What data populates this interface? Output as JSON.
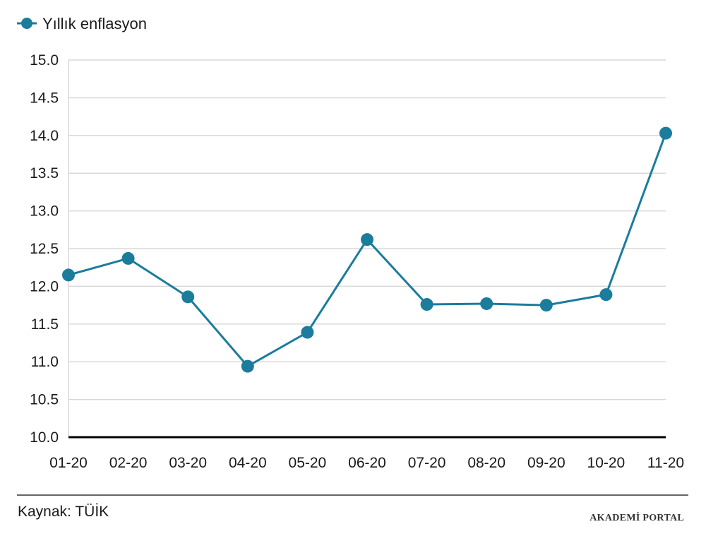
{
  "colors": {
    "series": "#1b7c9c",
    "grid": "#d9d9d9",
    "axis": "#000000",
    "text": "#1a1a1a"
  },
  "chart_data": {
    "type": "line",
    "title": "",
    "xlabel": "",
    "ylabel": "",
    "categories": [
      "01-20",
      "02-20",
      "03-20",
      "04-20",
      "05-20",
      "06-20",
      "07-20",
      "08-20",
      "09-20",
      "10-20",
      "11-20"
    ],
    "series": [
      {
        "name": "Yıllık enflasyon",
        "values": [
          12.15,
          12.37,
          11.86,
          10.94,
          11.39,
          12.62,
          11.76,
          11.77,
          11.75,
          11.89,
          14.03
        ]
      }
    ],
    "ylim": [
      10.0,
      15.0
    ],
    "yticks": [
      "10.0",
      "10.5",
      "11.0",
      "11.5",
      "12.0",
      "12.5",
      "13.0",
      "13.5",
      "14.0",
      "14.5",
      "15.0"
    ],
    "grid": true,
    "legend_position": "top-left"
  },
  "footer": {
    "source": "Kaynak: TÜİK",
    "watermark": "AKADEMİ PORTAL"
  }
}
